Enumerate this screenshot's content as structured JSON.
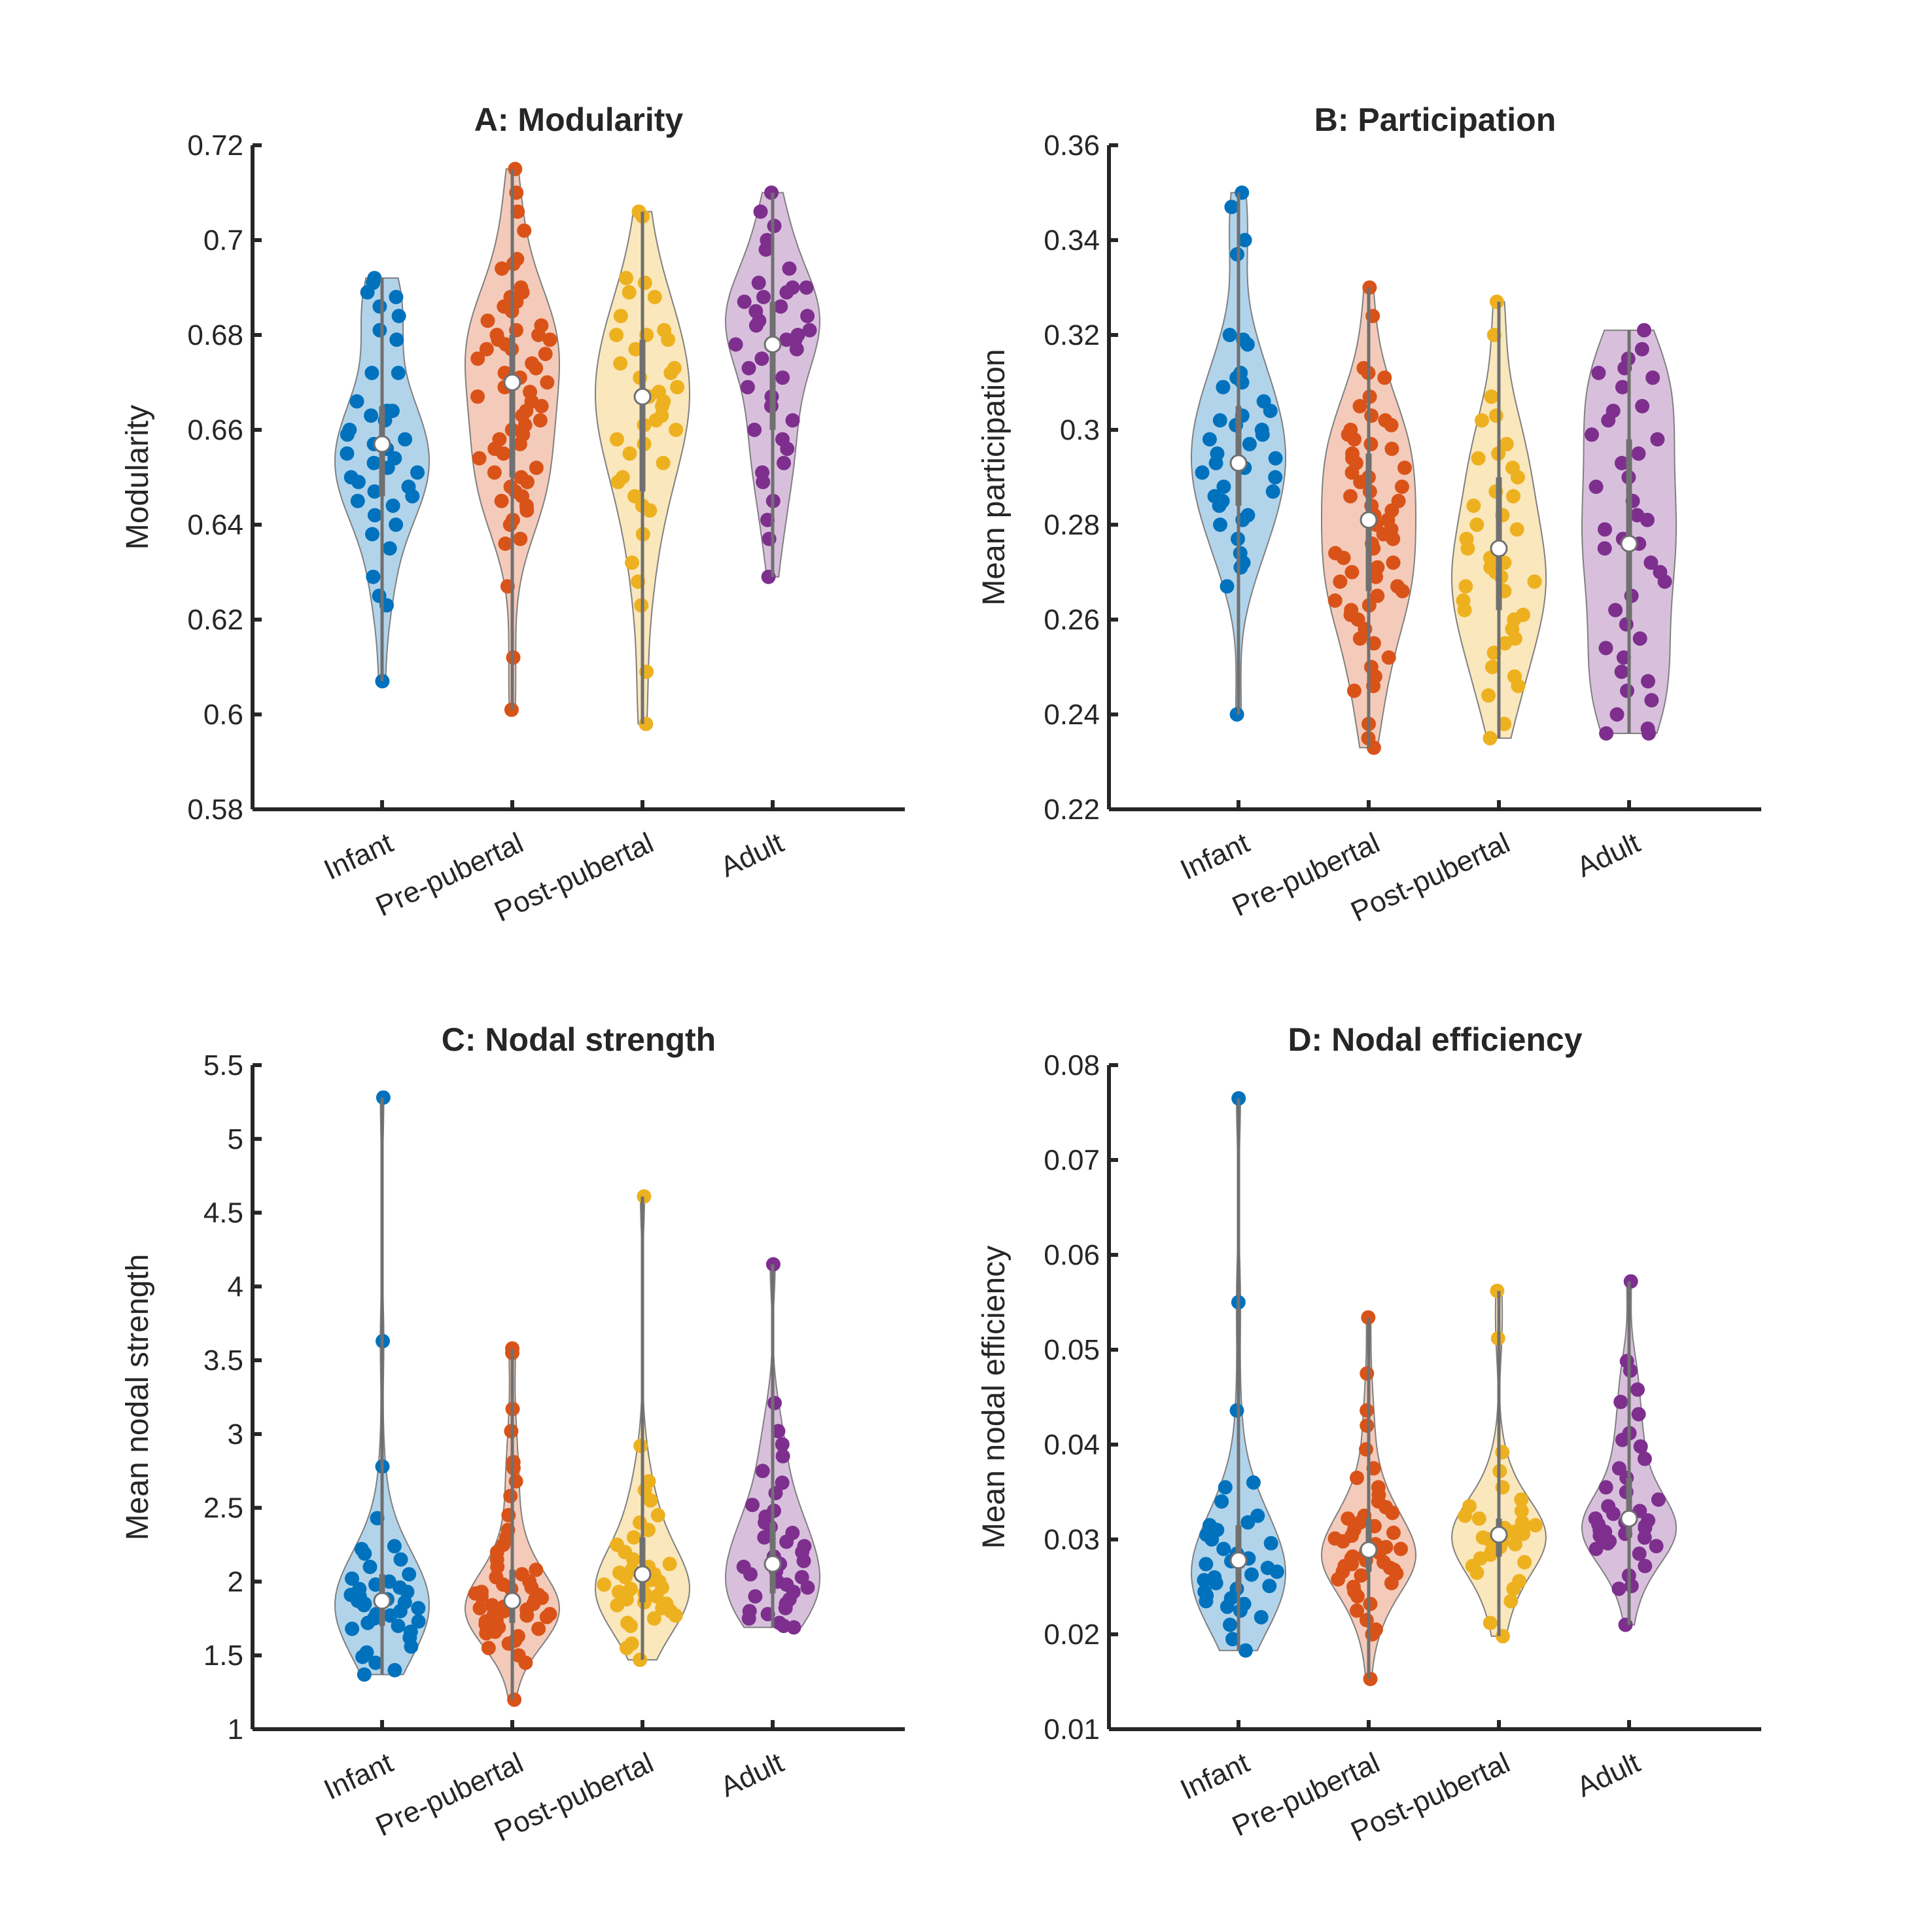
{
  "figure": {
    "background": "#ffffff"
  },
  "group_colors": {
    "Infant": "#0072BD",
    "Pre-pubertal": "#D95319",
    "Post-pubertal": "#EDB120",
    "Adult": "#7E2F8E"
  },
  "chart_data": [
    {
      "id": "A",
      "type": "violin",
      "title": "A: Modularity",
      "ylabel": "Modularity",
      "ylim": [
        0.58,
        0.72
      ],
      "yticks": [
        0.58,
        0.6,
        0.62,
        0.64,
        0.66,
        0.68,
        0.7,
        0.72
      ],
      "ytick_labels": [
        "0.58",
        "0.6",
        "0.62",
        "0.64",
        "0.66",
        "0.68",
        "0.7",
        "0.72"
      ],
      "categories": [
        "Infant",
        "Pre-pubertal",
        "Post-pubertal",
        "Adult"
      ],
      "groups": [
        {
          "name": "Infant",
          "min": 0.607,
          "max": 0.692,
          "q1": 0.646,
          "median": 0.657,
          "q3": 0.665,
          "points": [
            0.692,
            0.691,
            0.689,
            0.688,
            0.686,
            0.684,
            0.681,
            0.679,
            0.672,
            0.672,
            0.666,
            0.664,
            0.664,
            0.663,
            0.662,
            0.66,
            0.659,
            0.658,
            0.657,
            0.656,
            0.655,
            0.654,
            0.653,
            0.652,
            0.651,
            0.65,
            0.649,
            0.648,
            0.647,
            0.646,
            0.645,
            0.644,
            0.642,
            0.64,
            0.638,
            0.635,
            0.629,
            0.625,
            0.623,
            0.607
          ]
        },
        {
          "name": "Pre-pubertal",
          "min": 0.601,
          "max": 0.715,
          "q1": 0.65,
          "median": 0.67,
          "q3": 0.68,
          "points": [
            0.715,
            0.71,
            0.706,
            0.702,
            0.696,
            0.695,
            0.694,
            0.69,
            0.689,
            0.688,
            0.687,
            0.686,
            0.685,
            0.683,
            0.682,
            0.681,
            0.68,
            0.68,
            0.679,
            0.679,
            0.678,
            0.677,
            0.677,
            0.676,
            0.675,
            0.674,
            0.673,
            0.672,
            0.671,
            0.67,
            0.669,
            0.668,
            0.667,
            0.666,
            0.665,
            0.664,
            0.663,
            0.662,
            0.661,
            0.66,
            0.659,
            0.658,
            0.657,
            0.656,
            0.655,
            0.654,
            0.652,
            0.651,
            0.65,
            0.649,
            0.648,
            0.647,
            0.646,
            0.645,
            0.644,
            0.643,
            0.641,
            0.64,
            0.637,
            0.636,
            0.627,
            0.612,
            0.601
          ]
        },
        {
          "name": "Post-pubertal",
          "min": 0.598,
          "max": 0.706,
          "q1": 0.647,
          "median": 0.667,
          "q3": 0.679,
          "points": [
            0.706,
            0.705,
            0.692,
            0.691,
            0.689,
            0.688,
            0.684,
            0.681,
            0.68,
            0.68,
            0.679,
            0.677,
            0.674,
            0.673,
            0.672,
            0.671,
            0.669,
            0.668,
            0.667,
            0.666,
            0.665,
            0.663,
            0.662,
            0.661,
            0.66,
            0.658,
            0.657,
            0.655,
            0.653,
            0.65,
            0.649,
            0.646,
            0.644,
            0.643,
            0.638,
            0.632,
            0.628,
            0.623,
            0.609,
            0.598
          ]
        },
        {
          "name": "Adult",
          "min": 0.629,
          "max": 0.71,
          "q1": 0.66,
          "median": 0.678,
          "q3": 0.687,
          "points": [
            0.71,
            0.706,
            0.703,
            0.7,
            0.698,
            0.694,
            0.691,
            0.69,
            0.69,
            0.689,
            0.688,
            0.687,
            0.686,
            0.685,
            0.684,
            0.683,
            0.682,
            0.681,
            0.68,
            0.679,
            0.679,
            0.678,
            0.677,
            0.675,
            0.673,
            0.671,
            0.669,
            0.667,
            0.665,
            0.662,
            0.66,
            0.658,
            0.656,
            0.653,
            0.651,
            0.649,
            0.645,
            0.641,
            0.637,
            0.629
          ]
        }
      ]
    },
    {
      "id": "B",
      "type": "violin",
      "title": "B: Participation",
      "ylabel": "Mean participation",
      "ylim": [
        0.22,
        0.36
      ],
      "yticks": [
        0.22,
        0.24,
        0.26,
        0.28,
        0.3,
        0.32,
        0.34,
        0.36
      ],
      "ytick_labels": [
        "0.22",
        "0.24",
        "0.26",
        "0.28",
        "0.3",
        "0.32",
        "0.34",
        "0.36"
      ],
      "categories": [
        "Infant",
        "Pre-pubertal",
        "Post-pubertal",
        "Adult"
      ],
      "groups": [
        {
          "name": "Infant",
          "min": 0.24,
          "max": 0.35,
          "q1": 0.284,
          "median": 0.293,
          "q3": 0.305,
          "points": [
            0.35,
            0.347,
            0.34,
            0.337,
            0.32,
            0.319,
            0.318,
            0.312,
            0.311,
            0.31,
            0.309,
            0.306,
            0.304,
            0.303,
            0.302,
            0.301,
            0.3,
            0.299,
            0.298,
            0.297,
            0.295,
            0.294,
            0.293,
            0.292,
            0.291,
            0.29,
            0.288,
            0.287,
            0.286,
            0.285,
            0.284,
            0.282,
            0.281,
            0.28,
            0.277,
            0.274,
            0.272,
            0.271,
            0.267,
            0.24
          ]
        },
        {
          "name": "Pre-pubertal",
          "min": 0.233,
          "max": 0.33,
          "q1": 0.266,
          "median": 0.281,
          "q3": 0.295,
          "points": [
            0.33,
            0.324,
            0.313,
            0.312,
            0.311,
            0.307,
            0.305,
            0.303,
            0.302,
            0.301,
            0.3,
            0.299,
            0.298,
            0.297,
            0.296,
            0.295,
            0.294,
            0.293,
            0.292,
            0.291,
            0.29,
            0.289,
            0.288,
            0.287,
            0.286,
            0.285,
            0.284,
            0.283,
            0.282,
            0.281,
            0.28,
            0.279,
            0.278,
            0.277,
            0.276,
            0.275,
            0.274,
            0.273,
            0.272,
            0.271,
            0.27,
            0.269,
            0.268,
            0.267,
            0.266,
            0.265,
            0.264,
            0.263,
            0.262,
            0.261,
            0.26,
            0.258,
            0.256,
            0.255,
            0.252,
            0.25,
            0.248,
            0.246,
            0.245,
            0.238,
            0.235,
            0.233
          ]
        },
        {
          "name": "Post-pubertal",
          "min": 0.235,
          "max": 0.327,
          "q1": 0.262,
          "median": 0.275,
          "q3": 0.29,
          "points": [
            0.327,
            0.32,
            0.307,
            0.303,
            0.302,
            0.297,
            0.295,
            0.294,
            0.292,
            0.29,
            0.287,
            0.286,
            0.284,
            0.282,
            0.28,
            0.279,
            0.277,
            0.275,
            0.273,
            0.272,
            0.271,
            0.27,
            0.269,
            0.268,
            0.267,
            0.266,
            0.264,
            0.262,
            0.261,
            0.26,
            0.258,
            0.256,
            0.255,
            0.253,
            0.25,
            0.248,
            0.246,
            0.244,
            0.238,
            0.235
          ]
        },
        {
          "name": "Adult",
          "min": 0.236,
          "max": 0.321,
          "q1": 0.26,
          "median": 0.276,
          "q3": 0.298,
          "points": [
            0.321,
            0.317,
            0.315,
            0.313,
            0.312,
            0.311,
            0.309,
            0.305,
            0.304,
            0.302,
            0.299,
            0.298,
            0.295,
            0.293,
            0.29,
            0.288,
            0.285,
            0.282,
            0.281,
            0.279,
            0.277,
            0.276,
            0.275,
            0.272,
            0.27,
            0.268,
            0.265,
            0.262,
            0.259,
            0.256,
            0.254,
            0.252,
            0.249,
            0.247,
            0.245,
            0.243,
            0.24,
            0.237,
            0.236,
            0.236
          ]
        }
      ]
    },
    {
      "id": "C",
      "type": "violin",
      "title": "C: Nodal strength",
      "ylabel": "Mean nodal strength",
      "ylim": [
        1,
        5.5
      ],
      "yticks": [
        1,
        1.5,
        2,
        2.5,
        3,
        3.5,
        4,
        4.5,
        5,
        5.5
      ],
      "ytick_labels": [
        "1",
        "1.5",
        "2",
        "2.5",
        "3",
        "3.5",
        "4",
        "4.5",
        "5",
        "5.5"
      ],
      "categories": [
        "Infant",
        "Pre-pubertal",
        "Post-pubertal",
        "Adult"
      ],
      "groups": [
        {
          "name": "Infant",
          "min": 1.37,
          "max": 5.28,
          "q1": 1.7,
          "median": 1.87,
          "q3": 2.05,
          "points": [
            5.28,
            3.63,
            2.78,
            2.43,
            2.24,
            2.22,
            2.19,
            2.15,
            2.1,
            2.05,
            2.02,
            2.0,
            1.98,
            1.96,
            1.95,
            1.93,
            1.91,
            1.9,
            1.88,
            1.87,
            1.86,
            1.85,
            1.84,
            1.82,
            1.8,
            1.78,
            1.77,
            1.75,
            1.73,
            1.72,
            1.7,
            1.68,
            1.66,
            1.62,
            1.56,
            1.52,
            1.49,
            1.45,
            1.4,
            1.37
          ]
        },
        {
          "name": "Pre-pubertal",
          "min": 1.2,
          "max": 3.58,
          "q1": 1.72,
          "median": 1.87,
          "q3": 2.08,
          "points": [
            3.58,
            3.55,
            3.17,
            3.02,
            2.81,
            2.77,
            2.68,
            2.58,
            2.45,
            2.35,
            2.3,
            2.25,
            2.2,
            2.15,
            2.1,
            2.08,
            2.05,
            2.03,
            2.0,
            1.98,
            1.96,
            1.95,
            1.93,
            1.92,
            1.91,
            1.9,
            1.89,
            1.88,
            1.87,
            1.86,
            1.85,
            1.84,
            1.83,
            1.82,
            1.81,
            1.8,
            1.79,
            1.78,
            1.77,
            1.76,
            1.75,
            1.74,
            1.73,
            1.72,
            1.71,
            1.7,
            1.69,
            1.68,
            1.66,
            1.65,
            1.63,
            1.6,
            1.58,
            1.55,
            1.5,
            1.45,
            1.2
          ]
        },
        {
          "name": "Post-pubertal",
          "min": 1.47,
          "max": 4.61,
          "q1": 1.86,
          "median": 2.05,
          "q3": 2.3,
          "points": [
            4.61,
            2.92,
            2.68,
            2.62,
            2.55,
            2.45,
            2.4,
            2.35,
            2.3,
            2.25,
            2.2,
            2.15,
            2.12,
            2.1,
            2.08,
            2.06,
            2.05,
            2.03,
            2.01,
            2.0,
            1.98,
            1.96,
            1.95,
            1.93,
            1.92,
            1.9,
            1.88,
            1.86,
            1.85,
            1.84,
            1.82,
            1.8,
            1.77,
            1.75,
            1.72,
            1.7,
            1.58,
            1.55,
            1.47
          ]
        },
        {
          "name": "Adult",
          "min": 1.69,
          "max": 4.15,
          "q1": 1.92,
          "median": 2.12,
          "q3": 2.4,
          "points": [
            4.15,
            3.21,
            3.02,
            2.93,
            2.85,
            2.75,
            2.67,
            2.6,
            2.52,
            2.48,
            2.44,
            2.4,
            2.37,
            2.33,
            2.3,
            2.27,
            2.24,
            2.2,
            2.17,
            2.14,
            2.12,
            2.1,
            2.07,
            2.05,
            2.03,
            2.0,
            1.98,
            1.96,
            1.93,
            1.9,
            1.88,
            1.85,
            1.82,
            1.8,
            1.78,
            1.75,
            1.72,
            1.7,
            1.69
          ]
        }
      ]
    },
    {
      "id": "D",
      "type": "violin",
      "title": "D: Nodal efficiency",
      "ylabel": "Mean nodal efficiency",
      "ylim": [
        0.01,
        0.08
      ],
      "yticks": [
        0.01,
        0.02,
        0.03,
        0.04,
        0.05,
        0.06,
        0.07,
        0.08
      ],
      "ytick_labels": [
        "0.01",
        "0.02",
        "0.03",
        "0.04",
        "0.05",
        "0.06",
        "0.07",
        "0.08"
      ],
      "categories": [
        "Infant",
        "Pre-pubertal",
        "Post-pubertal",
        "Adult"
      ],
      "groups": [
        {
          "name": "Infant",
          "min": 0.0183,
          "max": 0.0765,
          "q1": 0.0245,
          "median": 0.0278,
          "q3": 0.0315,
          "points": [
            0.0765,
            0.055,
            0.0436,
            0.036,
            0.0355,
            0.034,
            0.0325,
            0.0318,
            0.0315,
            0.031,
            0.0305,
            0.03,
            0.0296,
            0.029,
            0.0285,
            0.028,
            0.0277,
            0.0274,
            0.027,
            0.0266,
            0.0263,
            0.026,
            0.0257,
            0.0254,
            0.0251,
            0.0248,
            0.0245,
            0.0241,
            0.0238,
            0.0235,
            0.0232,
            0.0229,
            0.0225,
            0.0218,
            0.021,
            0.0195,
            0.0183
          ]
        },
        {
          "name": "Pre-pubertal",
          "min": 0.0153,
          "max": 0.0534,
          "q1": 0.0266,
          "median": 0.0289,
          "q3": 0.0322,
          "points": [
            0.0534,
            0.0475,
            0.0436,
            0.042,
            0.0395,
            0.0375,
            0.0365,
            0.0355,
            0.0347,
            0.034,
            0.0334,
            0.0328,
            0.0325,
            0.0322,
            0.0318,
            0.0314,
            0.031,
            0.0307,
            0.0304,
            0.0301,
            0.0298,
            0.0295,
            0.0292,
            0.029,
            0.0288,
            0.0286,
            0.0284,
            0.0282,
            0.028,
            0.0278,
            0.0276,
            0.0274,
            0.0272,
            0.027,
            0.0268,
            0.0266,
            0.0264,
            0.0262,
            0.0258,
            0.0254,
            0.025,
            0.0245,
            0.024,
            0.0232,
            0.0225,
            0.0215,
            0.0205,
            0.02,
            0.0153
          ]
        },
        {
          "name": "Post-pubertal",
          "min": 0.0198,
          "max": 0.0562,
          "q1": 0.0282,
          "median": 0.0305,
          "q3": 0.0322,
          "points": [
            0.0562,
            0.0512,
            0.0392,
            0.0372,
            0.0355,
            0.0342,
            0.0335,
            0.033,
            0.0325,
            0.0322,
            0.0318,
            0.0315,
            0.0312,
            0.031,
            0.0308,
            0.0306,
            0.0304,
            0.0302,
            0.03,
            0.0297,
            0.0295,
            0.0292,
            0.0288,
            0.0284,
            0.028,
            0.0276,
            0.0272,
            0.0265,
            0.0256,
            0.0248,
            0.0235,
            0.0212,
            0.0198
          ]
        },
        {
          "name": "Adult",
          "min": 0.021,
          "max": 0.0572,
          "q1": 0.0302,
          "median": 0.0322,
          "q3": 0.0365,
          "points": [
            0.0572,
            0.0488,
            0.0478,
            0.0458,
            0.0445,
            0.0432,
            0.0412,
            0.0405,
            0.0398,
            0.0385,
            0.0375,
            0.0365,
            0.0355,
            0.035,
            0.0342,
            0.0335,
            0.033,
            0.0327,
            0.0324,
            0.0322,
            0.032,
            0.0318,
            0.0316,
            0.0314,
            0.0312,
            0.031,
            0.0308,
            0.0306,
            0.0304,
            0.0302,
            0.03,
            0.0298,
            0.0296,
            0.0293,
            0.029,
            0.0285,
            0.0272,
            0.0262,
            0.0251,
            0.0248,
            0.021
          ]
        }
      ]
    }
  ]
}
